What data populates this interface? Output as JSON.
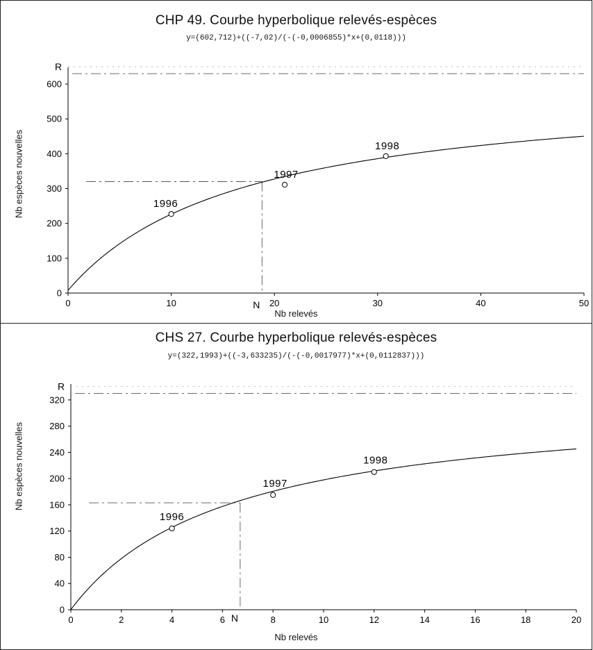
{
  "chart_data": [
    {
      "type": "scatter",
      "title": "CHP 49. Courbe hyperbolique relevés-espèces",
      "subtitle": "y=(602,712)+((-7,02)/(-(-0,0006855)*x+(0,0118)))",
      "xlabel": "Nb relevés",
      "ylabel": "Nb espèces nouvelles",
      "xlim": [
        0,
        50
      ],
      "ylim": [
        0,
        640
      ],
      "xticks": [
        "0",
        "10",
        "20",
        "30",
        "40",
        "50"
      ],
      "yticks": [
        "0",
        "100",
        "200",
        "300",
        "400",
        "500",
        "600"
      ],
      "asymptote_label": "R",
      "asymptote_value": 630,
      "n_label": "N",
      "n_x": 18.8,
      "n_y": 320,
      "curve": {
        "a": 602.712,
        "b": -7.02,
        "c": -0.0006855,
        "d": 0.0118
      },
      "points": [
        {
          "label": "1996",
          "x": 10,
          "y": 227
        },
        {
          "label": "1997",
          "x": 21,
          "y": 311
        },
        {
          "label": "1998",
          "x": 30.8,
          "y": 393
        }
      ],
      "grid": false
    },
    {
      "type": "scatter",
      "title": "CHS 27. Courbe hyperbolique relevés-espèces",
      "subtitle": "y=(322,1993)+((-3,633235)/(-(-0,0017977)*x+(0,0112837)))",
      "xlabel": "Nb relevés",
      "ylabel": "Nb espèces nouvelles",
      "xlim": [
        0,
        20
      ],
      "ylim": [
        0,
        340
      ],
      "xticks": [
        "0",
        "2",
        "4",
        "6",
        "8",
        "10",
        "12",
        "14",
        "16",
        "18",
        "20"
      ],
      "yticks": [
        "0",
        "40",
        "80",
        "120",
        "160",
        "200",
        "240",
        "280",
        "320"
      ],
      "asymptote_label": "R",
      "asymptote_value": 330,
      "n_label": "N",
      "n_x": 6.7,
      "n_y": 163,
      "curve": {
        "a": 322.1993,
        "b": -3.633235,
        "c": -0.0017977,
        "d": 0.0112837
      },
      "points": [
        {
          "label": "1996",
          "x": 4,
          "y": 124
        },
        {
          "label": "1997",
          "x": 8,
          "y": 175
        },
        {
          "label": "1998",
          "x": 12,
          "y": 210
        }
      ],
      "grid": false
    }
  ]
}
